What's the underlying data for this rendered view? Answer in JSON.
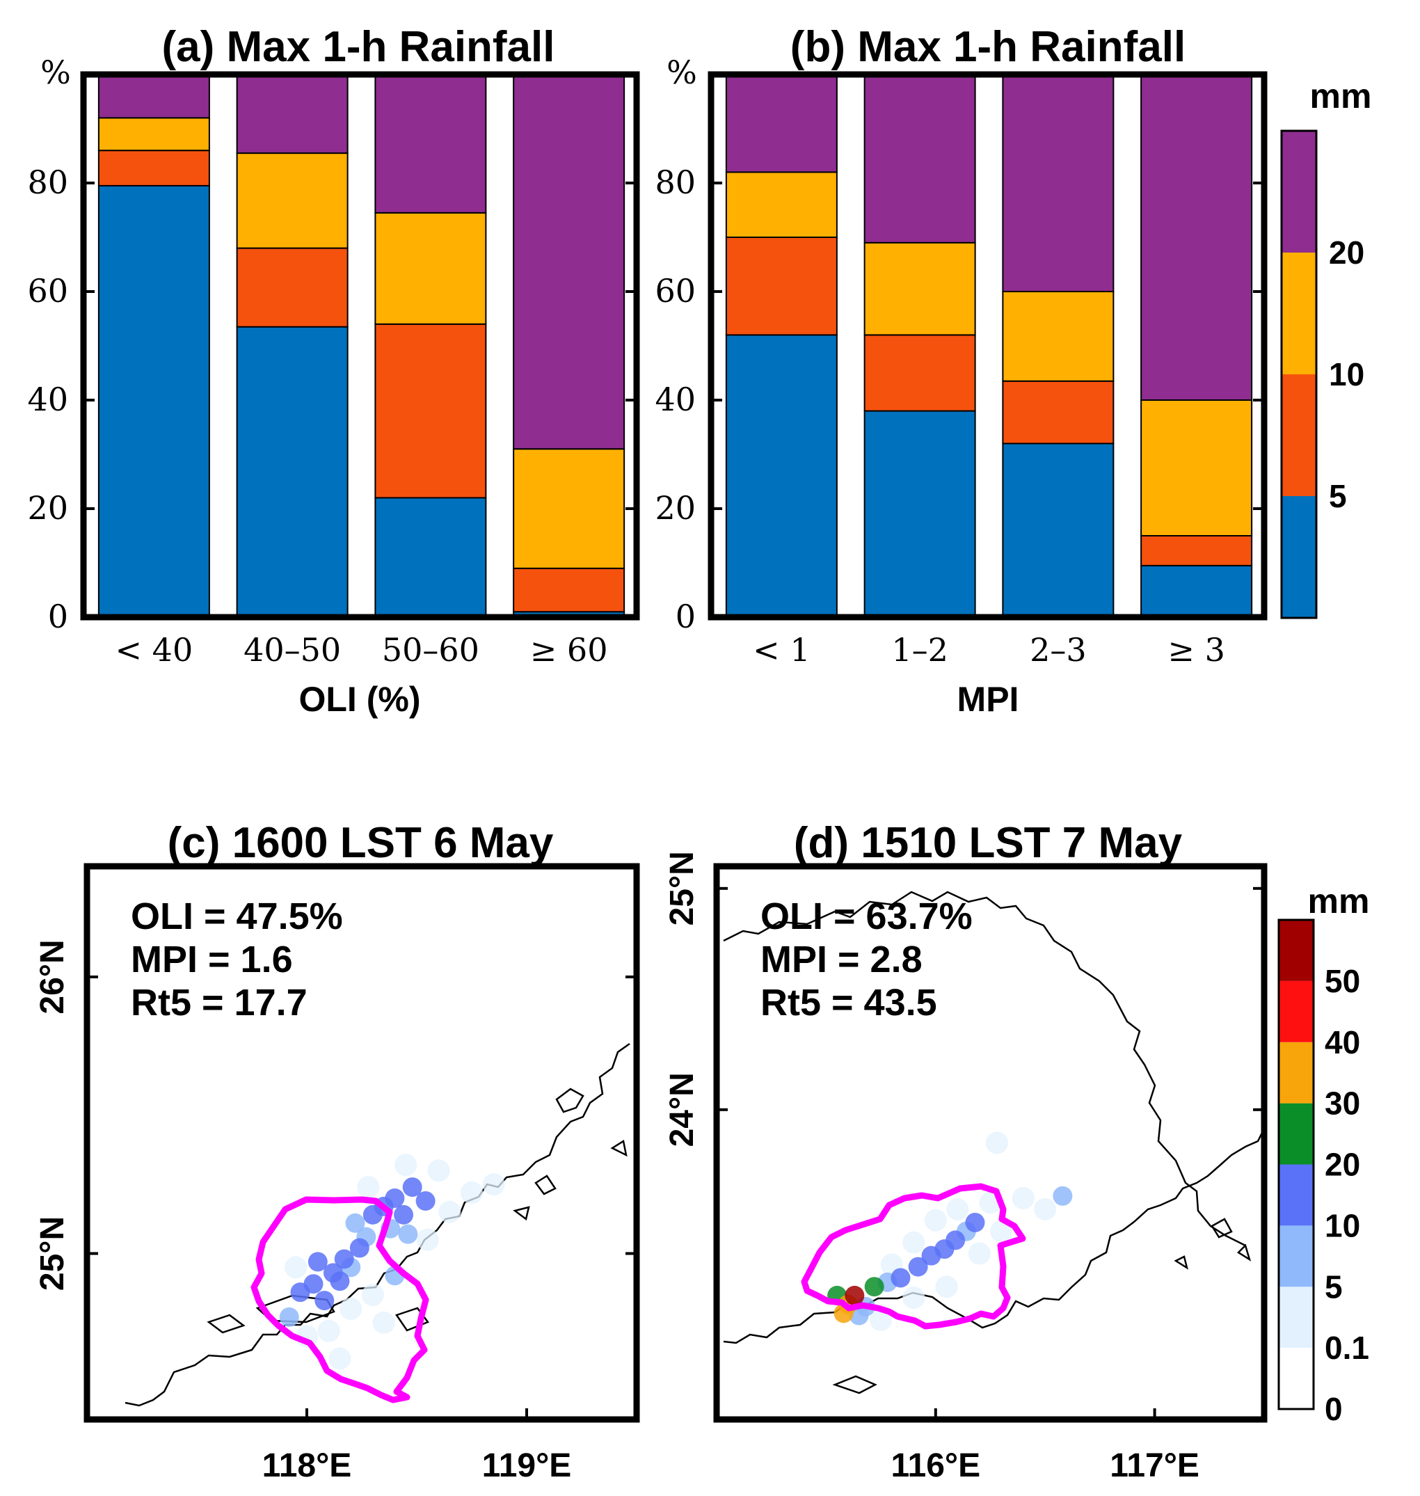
{
  "figure": {
    "colors": {
      "blue": "#0072bd",
      "red": "#f5520e",
      "yellow": "#ffb000",
      "purple": "#8f2d90",
      "magenta": "#ff00ff"
    }
  },
  "chart_data": [
    {
      "id": "a",
      "type": "bar",
      "stacked": true,
      "title": "(a) Max 1-h Rainfall",
      "xlabel": "OLI (%)",
      "ylabel": "%",
      "ylim": [
        0,
        100
      ],
      "yticks": [
        "0",
        "20",
        "40",
        "60",
        "80"
      ],
      "categories": [
        "< 40",
        "40–50",
        "50–60",
        "≥ 60"
      ],
      "series": [
        {
          "name": "< 5 mm",
          "color": "#0072bd",
          "values": [
            79.5,
            53.5,
            22,
            1
          ]
        },
        {
          "name": "5–10 mm",
          "color": "#f5520e",
          "values": [
            6.5,
            14.5,
            32,
            8
          ]
        },
        {
          "name": "10–20 mm",
          "color": "#ffb000",
          "values": [
            6,
            17.5,
            20.5,
            22
          ]
        },
        {
          "name": "≥ 20 mm",
          "color": "#8f2d90",
          "values": [
            8,
            14.5,
            25.5,
            69
          ]
        }
      ]
    },
    {
      "id": "b",
      "type": "bar",
      "stacked": true,
      "title": "(b) Max 1-h Rainfall",
      "xlabel": "MPI",
      "ylabel": "%",
      "ylim": [
        0,
        100
      ],
      "yticks": [
        "0",
        "20",
        "40",
        "60",
        "80"
      ],
      "categories": [
        "< 1",
        "1–2",
        "2–3",
        "≥ 3"
      ],
      "series": [
        {
          "name": "< 5 mm",
          "color": "#0072bd",
          "values": [
            52,
            38,
            32,
            9.5
          ]
        },
        {
          "name": "5–10 mm",
          "color": "#f5520e",
          "values": [
            18,
            14,
            11.5,
            5.5
          ]
        },
        {
          "name": "10–20 mm",
          "color": "#ffb000",
          "values": [
            12,
            17,
            16.5,
            25
          ]
        },
        {
          "name": "≥ 20 mm",
          "color": "#8f2d90",
          "values": [
            18,
            31,
            40,
            60
          ]
        }
      ],
      "colorbar": {
        "unit": "mm",
        "ticks": [
          "5",
          "10",
          "20"
        ],
        "colors": [
          "#0072bd",
          "#f5520e",
          "#ffb000",
          "#8f2d90"
        ]
      }
    },
    {
      "id": "c",
      "type": "scatter",
      "title": "(c) 1600 LST 6 May",
      "annotations": [
        "OLI = 47.5%",
        "MPI = 1.6",
        "Rt5 = 17.7"
      ],
      "xlim": [
        117.0,
        119.5
      ],
      "ylim": [
        24.4,
        26.4
      ],
      "xticks": [
        118,
        119
      ],
      "xtick_labels": [
        "118°E",
        "119°E"
      ],
      "yticks": [
        25,
        26
      ],
      "ytick_labels": [
        "25°N",
        "26°N"
      ],
      "points": [
        {
          "lon": 117.97,
          "lat": 24.86,
          "mm": 12
        },
        {
          "lon": 118.03,
          "lat": 24.89,
          "mm": 14
        },
        {
          "lon": 118.08,
          "lat": 24.83,
          "mm": 12
        },
        {
          "lon": 118.12,
          "lat": 24.93,
          "mm": 14
        },
        {
          "lon": 118.05,
          "lat": 24.97,
          "mm": 10
        },
        {
          "lon": 118.17,
          "lat": 24.98,
          "mm": 12
        },
        {
          "lon": 118.15,
          "lat": 24.9,
          "mm": 10
        },
        {
          "lon": 118.2,
          "lat": 24.95,
          "mm": 9
        },
        {
          "lon": 118.24,
          "lat": 25.02,
          "mm": 10
        },
        {
          "lon": 118.27,
          "lat": 25.06,
          "mm": 9
        },
        {
          "lon": 118.22,
          "lat": 25.11,
          "mm": 8
        },
        {
          "lon": 118.3,
          "lat": 25.14,
          "mm": 10
        },
        {
          "lon": 118.35,
          "lat": 25.17,
          "mm": 12
        },
        {
          "lon": 118.4,
          "lat": 25.2,
          "mm": 14
        },
        {
          "lon": 118.44,
          "lat": 25.14,
          "mm": 12
        },
        {
          "lon": 118.48,
          "lat": 25.24,
          "mm": 14
        },
        {
          "lon": 118.54,
          "lat": 25.19,
          "mm": 12
        },
        {
          "lon": 118.38,
          "lat": 25.09,
          "mm": 9
        },
        {
          "lon": 118.46,
          "lat": 25.07,
          "mm": 8
        },
        {
          "lon": 117.92,
          "lat": 24.77,
          "mm": 7
        },
        {
          "lon": 118.4,
          "lat": 24.92,
          "mm": 6
        },
        {
          "lon": 118.0,
          "lat": 24.7,
          "mm": 3
        },
        {
          "lon": 118.1,
          "lat": 24.72,
          "mm": 2
        },
        {
          "lon": 118.2,
          "lat": 24.8,
          "mm": 3
        },
        {
          "lon": 118.3,
          "lat": 24.85,
          "mm": 2
        },
        {
          "lon": 118.35,
          "lat": 24.75,
          "mm": 2
        },
        {
          "lon": 118.55,
          "lat": 25.05,
          "mm": 2
        },
        {
          "lon": 118.6,
          "lat": 25.3,
          "mm": 2
        },
        {
          "lon": 118.45,
          "lat": 25.32,
          "mm": 3
        },
        {
          "lon": 118.65,
          "lat": 25.15,
          "mm": 1
        },
        {
          "lon": 118.75,
          "lat": 25.22,
          "mm": 1
        },
        {
          "lon": 118.28,
          "lat": 25.24,
          "mm": 3
        },
        {
          "lon": 117.95,
          "lat": 24.95,
          "mm": 2
        },
        {
          "lon": 118.15,
          "lat": 24.62,
          "mm": 1
        },
        {
          "lon": 118.85,
          "lat": 25.25,
          "mm": 1
        }
      ],
      "contour_color": "#ff00ff"
    },
    {
      "id": "d",
      "type": "scatter",
      "title": "(d) 1510 LST 7 May",
      "annotations": [
        "OLI = 63.7%",
        "MPI = 2.8",
        "Rt5 = 43.5"
      ],
      "xlim": [
        115.0,
        117.5
      ],
      "ylim": [
        22.6,
        25.1
      ],
      "xticks": [
        116,
        117
      ],
      "xtick_labels": [
        "116°E",
        "117°E"
      ],
      "yticks": [
        24,
        25
      ],
      "ytick_labels": [
        "24°N",
        "25°N"
      ],
      "points": [
        {
          "lon": 115.55,
          "lat": 23.16,
          "mm": 22
        },
        {
          "lon": 115.6,
          "lat": 23.12,
          "mm": 32
        },
        {
          "lon": 115.58,
          "lat": 23.08,
          "mm": 33
        },
        {
          "lon": 115.63,
          "lat": 23.16,
          "mm": 55
        },
        {
          "lon": 115.72,
          "lat": 23.2,
          "mm": 22
        },
        {
          "lon": 115.68,
          "lat": 23.11,
          "mm": 7
        },
        {
          "lon": 115.65,
          "lat": 23.07,
          "mm": 6
        },
        {
          "lon": 115.84,
          "lat": 23.24,
          "mm": 12
        },
        {
          "lon": 115.92,
          "lat": 23.29,
          "mm": 10
        },
        {
          "lon": 115.98,
          "lat": 23.34,
          "mm": 12
        },
        {
          "lon": 116.04,
          "lat": 23.37,
          "mm": 14
        },
        {
          "lon": 116.09,
          "lat": 23.41,
          "mm": 12
        },
        {
          "lon": 116.14,
          "lat": 23.45,
          "mm": 9
        },
        {
          "lon": 116.18,
          "lat": 23.49,
          "mm": 12
        },
        {
          "lon": 115.78,
          "lat": 23.22,
          "mm": 8
        },
        {
          "lon": 116.58,
          "lat": 23.61,
          "mm": 8
        },
        {
          "lon": 115.8,
          "lat": 23.3,
          "mm": 2
        },
        {
          "lon": 115.9,
          "lat": 23.4,
          "mm": 2
        },
        {
          "lon": 116.0,
          "lat": 23.5,
          "mm": 2
        },
        {
          "lon": 116.1,
          "lat": 23.55,
          "mm": 2
        },
        {
          "lon": 116.25,
          "lat": 23.58,
          "mm": 2
        },
        {
          "lon": 116.3,
          "lat": 23.45,
          "mm": 2
        },
        {
          "lon": 116.2,
          "lat": 23.35,
          "mm": 1
        },
        {
          "lon": 116.05,
          "lat": 23.2,
          "mm": 1
        },
        {
          "lon": 115.9,
          "lat": 23.15,
          "mm": 1
        },
        {
          "lon": 116.4,
          "lat": 23.6,
          "mm": 1
        },
        {
          "lon": 116.5,
          "lat": 23.55,
          "mm": 1
        },
        {
          "lon": 116.28,
          "lat": 23.85,
          "mm": 1
        },
        {
          "lon": 115.75,
          "lat": 23.05,
          "mm": 2
        }
      ],
      "contour_color": "#ff00ff",
      "colorbar": {
        "unit": "mm",
        "ticks": [
          "0",
          "0.1",
          "5",
          "10",
          "20",
          "30",
          "40",
          "50"
        ],
        "bounds": [
          0,
          0.1,
          5,
          10,
          20,
          30,
          40,
          50,
          60
        ],
        "colors": [
          "#ffffff",
          "#e3f1fe",
          "#8fb9fa",
          "#5a72f7",
          "#0a8f28",
          "#f7a50a",
          "#ff1010",
          "#a00000"
        ]
      }
    }
  ]
}
